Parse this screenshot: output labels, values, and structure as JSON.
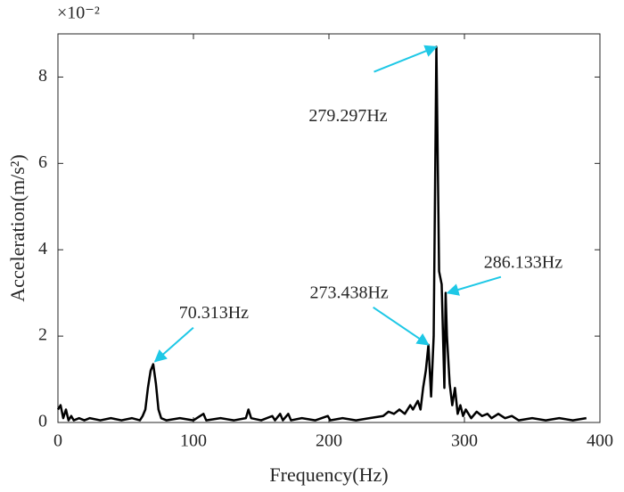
{
  "chart_data": {
    "type": "line",
    "xlabel": "Frequency(Hz)",
    "ylabel": "Acceleration(m/s²)",
    "axis_multiplier": "×10⁻²",
    "xlim": [
      0,
      400
    ],
    "ylim": [
      0,
      9
    ],
    "xticks": [
      0,
      100,
      200,
      300,
      400
    ],
    "yticks": [
      0,
      2,
      4,
      6,
      8
    ],
    "grid": false,
    "series": [
      {
        "color": "#000000",
        "x": [
          0,
          1.95,
          3.9,
          5.9,
          7.8,
          9.8,
          11.7,
          15.6,
          19.5,
          23.4,
          31.3,
          39.1,
          46.9,
          54.7,
          60.5,
          62.5,
          64.5,
          66.4,
          68.4,
          70.313,
          72.3,
          74.2,
          76.2,
          80,
          90,
          100,
          107.4,
          109.4,
          120,
          130,
          138.7,
          140.6,
          142.6,
          150,
          158.2,
          160.2,
          164,
          166,
          170,
          172,
          180,
          190,
          199.2,
          201,
          210,
          220,
          230,
          240,
          244,
          248,
          252,
          256,
          260,
          262,
          265.6,
          267.6,
          269.5,
          271.5,
          273.438,
          275.4,
          277.3,
          279.297,
          281.3,
          283.2,
          285.2,
          286.133,
          287.1,
          289.1,
          291,
          293,
          295,
          297,
          299,
          301,
          305,
          309,
          313,
          317,
          320,
          325,
          330,
          335,
          340,
          350,
          360,
          370,
          380,
          390
        ],
        "values": [
          0.3,
          0.4,
          0.1,
          0.3,
          0.05,
          0.15,
          0.05,
          0.1,
          0.05,
          0.1,
          0.05,
          0.1,
          0.05,
          0.1,
          0.05,
          0.15,
          0.3,
          0.8,
          1.2,
          1.35,
          0.9,
          0.3,
          0.1,
          0.05,
          0.1,
          0.05,
          0.2,
          0.05,
          0.1,
          0.05,
          0.1,
          0.3,
          0.1,
          0.05,
          0.15,
          0.05,
          0.2,
          0.05,
          0.2,
          0.05,
          0.1,
          0.05,
          0.15,
          0.05,
          0.1,
          0.05,
          0.1,
          0.15,
          0.25,
          0.2,
          0.3,
          0.2,
          0.4,
          0.3,
          0.5,
          0.3,
          0.8,
          1.2,
          1.8,
          0.6,
          2.0,
          8.7,
          3.5,
          3.2,
          0.8,
          3.0,
          2.0,
          0.9,
          0.4,
          0.8,
          0.2,
          0.4,
          0.15,
          0.3,
          0.1,
          0.25,
          0.15,
          0.2,
          0.1,
          0.2,
          0.1,
          0.15,
          0.05,
          0.1,
          0.05,
          0.1,
          0.05,
          0.1
        ]
      }
    ],
    "annotation_color": "#1ec8e6",
    "annotations": [
      {
        "text": "70.313Hz",
        "x": 70.313,
        "y": 1.35
      },
      {
        "text": "279.297Hz",
        "x": 279.297,
        "y": 8.7
      },
      {
        "text": "273.438Hz",
        "x": 273.438,
        "y": 1.8
      },
      {
        "text": "286.133Hz",
        "x": 286.133,
        "y": 3.0
      }
    ]
  }
}
